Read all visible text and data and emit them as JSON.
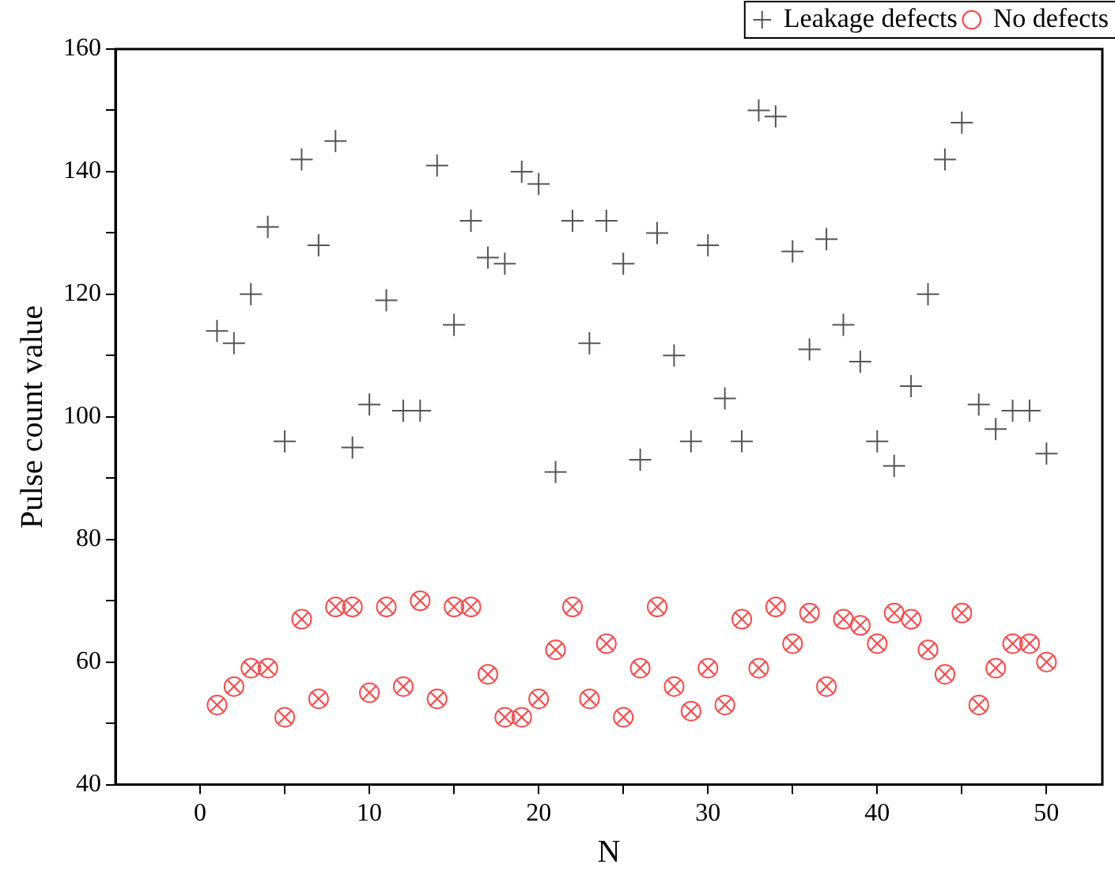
{
  "chart_data": {
    "type": "scatter",
    "xlabel": "N",
    "ylabel": "Pulse count value",
    "x": [
      1,
      2,
      3,
      4,
      5,
      6,
      7,
      8,
      9,
      10,
      11,
      12,
      13,
      14,
      15,
      16,
      17,
      18,
      19,
      20,
      21,
      22,
      23,
      24,
      25,
      26,
      27,
      28,
      29,
      30,
      31,
      32,
      33,
      34,
      35,
      36,
      37,
      38,
      39,
      40,
      41,
      42,
      43,
      44,
      45,
      46,
      47,
      48,
      49,
      50
    ],
    "series": [
      {
        "name": "Leakage defects",
        "color": "#555555",
        "marker": "cross",
        "values": [
          114,
          112,
          120,
          131,
          96,
          142,
          128,
          145,
          95,
          102,
          119,
          101,
          101,
          141,
          115,
          132,
          126,
          125,
          140,
          138,
          91,
          132,
          112,
          132,
          125,
          93,
          130,
          110,
          96,
          128,
          103,
          96,
          150,
          149,
          127,
          111,
          129,
          115,
          109,
          96,
          92,
          105,
          120,
          142,
          148,
          102,
          98,
          101,
          101,
          94
        ]
      },
      {
        "name": "No defects",
        "color": "#ff4444",
        "marker": "circle",
        "values": [
          53,
          56,
          59,
          59,
          51,
          67,
          54,
          69,
          69,
          55,
          69,
          56,
          70,
          54,
          69,
          69,
          58,
          51,
          51,
          54,
          62,
          69,
          54,
          63,
          51,
          59,
          69,
          56,
          52,
          59,
          53,
          67,
          59,
          69,
          63,
          68,
          56,
          67,
          66,
          63,
          68,
          67,
          62,
          58,
          68,
          53,
          59,
          63,
          63,
          60
        ]
      }
    ],
    "xlim": [
      -5,
      53.3
    ],
    "xticks": [
      0,
      {
        "value": 5,
        "label": null
      },
      10,
      {
        "value": 15,
        "label": null
      },
      20,
      {
        "value": 25,
        "label": null
      },
      30,
      {
        "value": 35,
        "label": null
      },
      40,
      {
        "value": 45,
        "label": null
      },
      50
    ],
    "ylim": [
      40,
      160
    ],
    "yticks": [
      40,
      {
        "value": 50,
        "label": null
      },
      60,
      {
        "value": 70,
        "label": null
      },
      80,
      {
        "value": 90,
        "label": null
      },
      100,
      {
        "value": 110,
        "label": null
      },
      120,
      {
        "value": 130,
        "label": null
      },
      140,
      {
        "value": 150,
        "label": null
      },
      160
    ],
    "grid": false,
    "legend": "top right"
  }
}
